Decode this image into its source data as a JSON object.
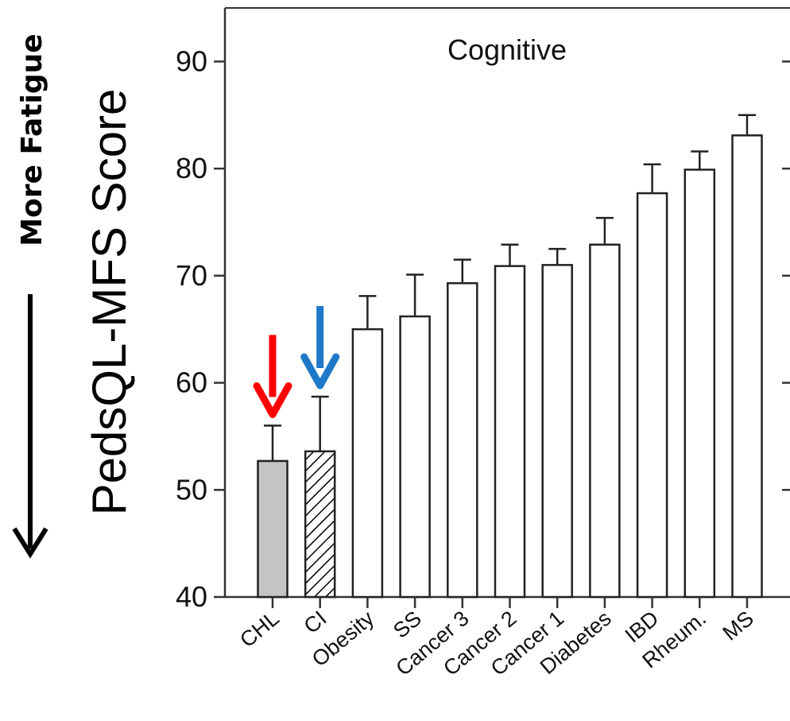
{
  "chart_data": {
    "type": "bar",
    "panel_label": "Cognitive",
    "ylabel": "PedsQL-MFS Score",
    "side_label": "More Fatigue",
    "ylim": [
      40,
      95
    ],
    "yticks": [
      40,
      50,
      60,
      70,
      80,
      90
    ],
    "categories": [
      "CHL",
      "CI",
      "Obesity",
      "SS",
      "Cancer 3",
      "Cancer 2",
      "Cancer 1",
      "Diabetes",
      "IBD",
      "Rheum.",
      "MS"
    ],
    "values": [
      52.7,
      53.6,
      65.0,
      66.2,
      69.3,
      70.9,
      71.0,
      72.9,
      77.7,
      79.9,
      83.1
    ],
    "error_upper": [
      56.0,
      58.7,
      68.1,
      70.1,
      71.5,
      72.9,
      72.5,
      75.4,
      80.4,
      81.6,
      85.0
    ],
    "bar_fills": [
      "gray",
      "hatched",
      "white",
      "white",
      "white",
      "white",
      "white",
      "white",
      "white",
      "white",
      "white"
    ],
    "arrows": [
      {
        "category": "CHL",
        "color": "#ff0000"
      },
      {
        "category": "CI",
        "color": "#1f78c8"
      }
    ],
    "grid": false
  }
}
